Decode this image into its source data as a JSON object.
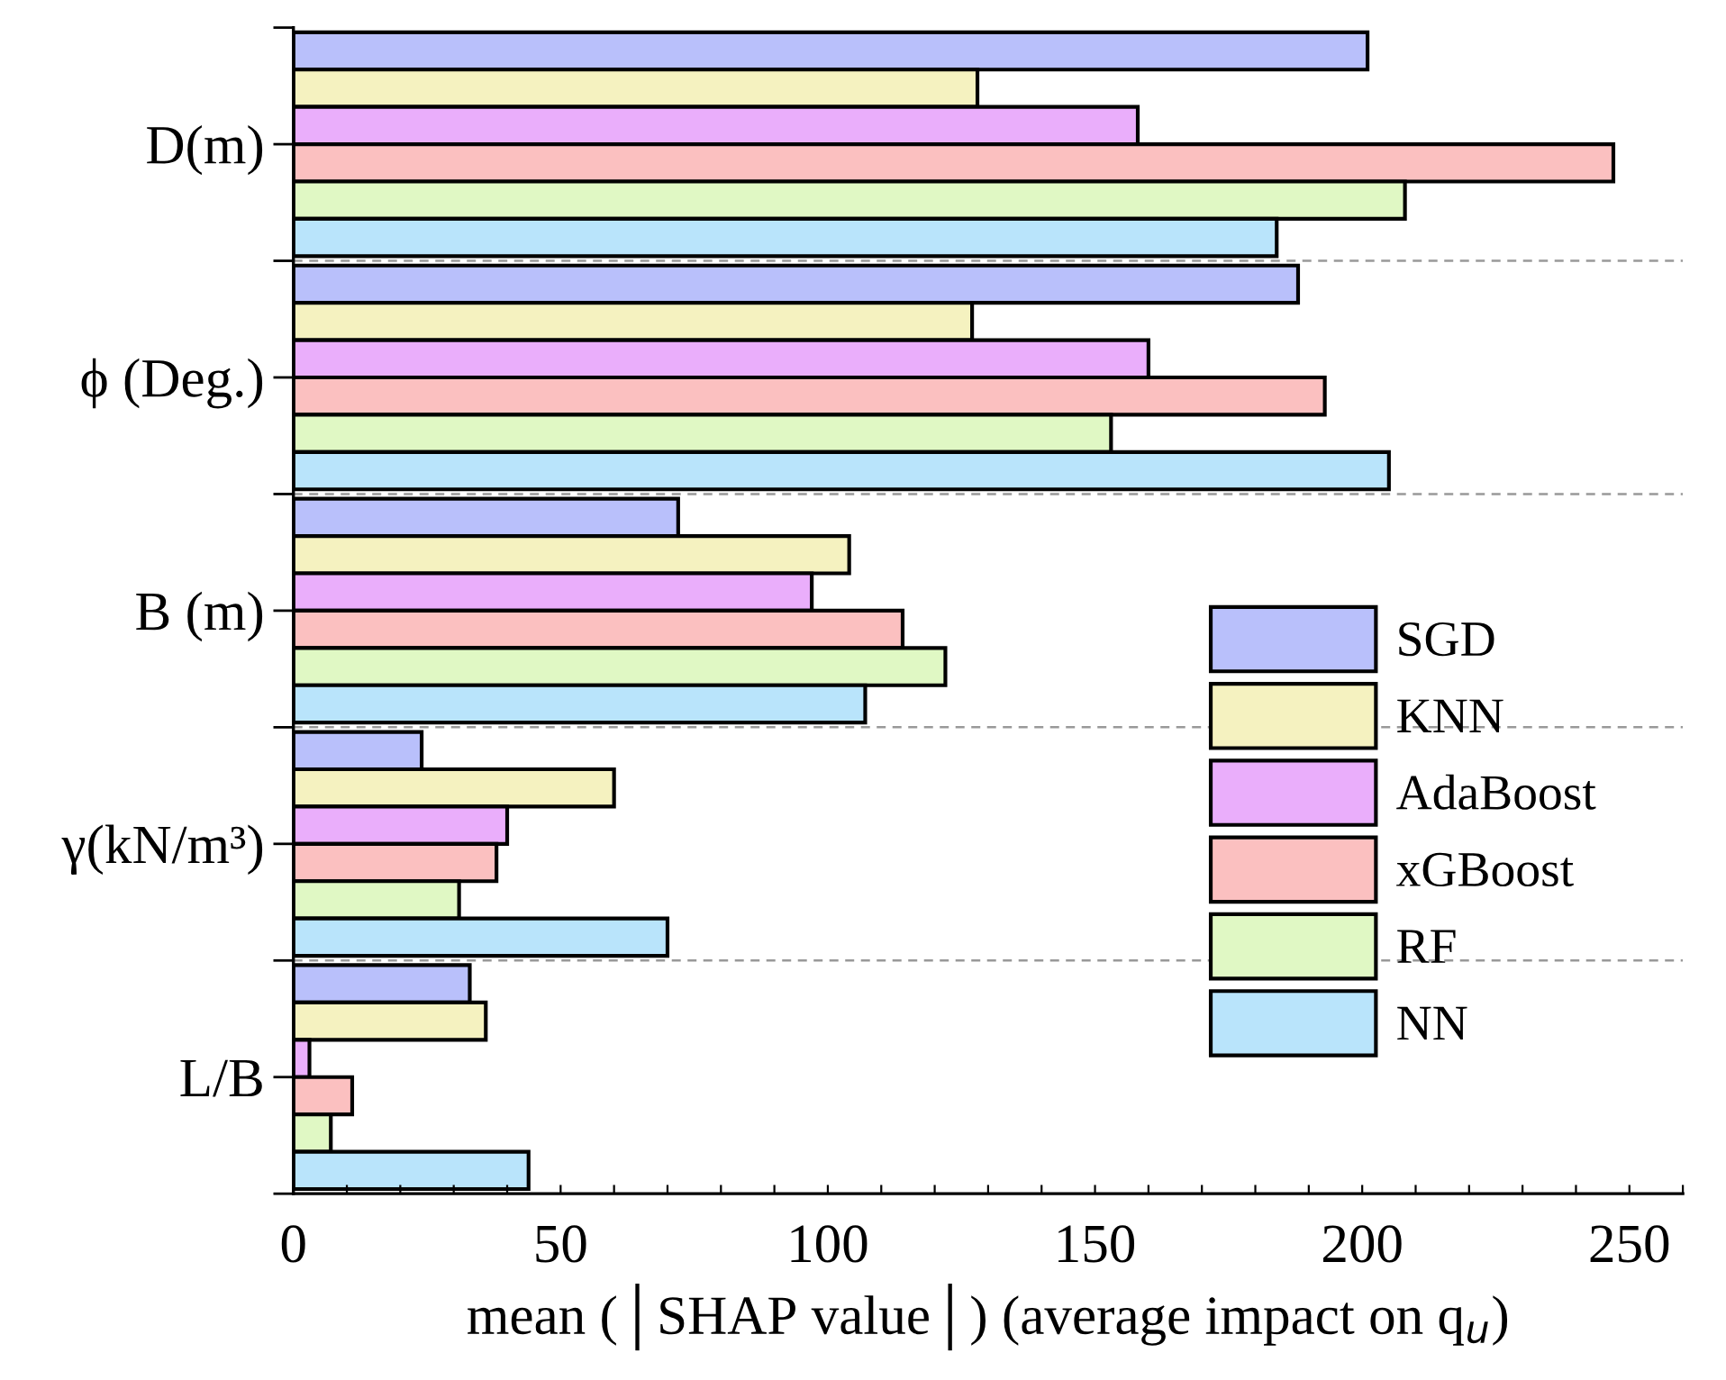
{
  "chart_data": {
    "type": "bar",
    "orientation": "horizontal",
    "categories": [
      "D(m)",
      "ϕ (Deg.)",
      "B (m)",
      "γ(kN/m³)",
      "L/B"
    ],
    "series": [
      {
        "name": "SGD",
        "color": "#b9c0fb",
        "values": [
          201,
          188,
          72,
          24,
          33
        ]
      },
      {
        "name": "KNN",
        "color": "#f5f2c0",
        "values": [
          128,
          127,
          104,
          60,
          36
        ]
      },
      {
        "name": "AdaBoost",
        "color": "#eaaefb",
        "values": [
          158,
          160,
          97,
          40,
          3
        ]
      },
      {
        "name": "xGBoost",
        "color": "#fbc0c0",
        "values": [
          247,
          193,
          114,
          38,
          11
        ]
      },
      {
        "name": "RF",
        "color": "#e0f8c4",
        "values": [
          208,
          153,
          122,
          31,
          7
        ]
      },
      {
        "name": "NN",
        "color": "#b9e4fb",
        "values": [
          184,
          205,
          107,
          70,
          44
        ]
      }
    ],
    "xlabel": "mean (│SHAP value│) (average impact on q$_{u}$)",
    "xlim": [
      0,
      260
    ],
    "xticks": [
      0,
      {
        "value": 10,
        "label": null
      },
      {
        "value": 20,
        "label": null
      },
      {
        "value": 30,
        "label": null
      },
      {
        "value": 40,
        "label": null
      },
      50,
      {
        "value": 60,
        "label": null
      },
      {
        "value": 70,
        "label": null
      },
      {
        "value": 80,
        "label": null
      },
      {
        "value": 90,
        "label": null
      },
      100,
      {
        "value": 110,
        "label": null
      },
      {
        "value": 120,
        "label": null
      },
      {
        "value": 130,
        "label": null
      },
      {
        "value": 140,
        "label": null
      },
      150,
      {
        "value": 160,
        "label": null
      },
      {
        "value": 170,
        "label": null
      },
      {
        "value": 180,
        "label": null
      },
      {
        "value": 190,
        "label": null
      },
      200,
      {
        "value": 210,
        "label": null
      },
      {
        "value": 220,
        "label": null
      },
      {
        "value": 230,
        "label": null
      },
      {
        "value": 240,
        "label": null
      },
      250,
      {
        "value": 260,
        "label": null
      }
    ],
    "grid": "y",
    "legend": "bottom right"
  }
}
